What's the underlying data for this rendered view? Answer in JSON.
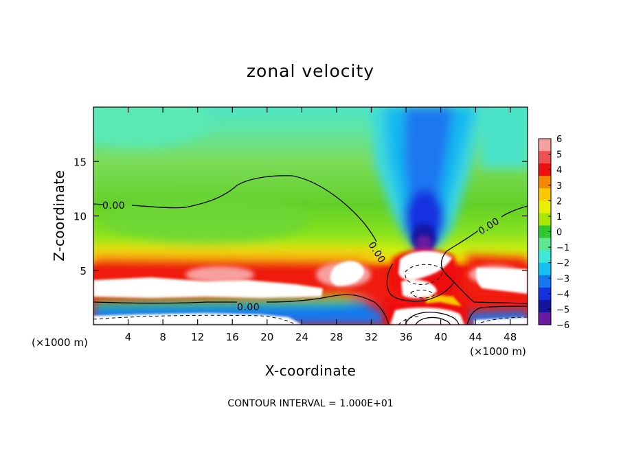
{
  "chart_data": {
    "type": "heatmap",
    "title": "zonal velocity",
    "xlabel": "X-coordinate",
    "ylabel": "Z-coordinate",
    "x_units": "(×1000 m)",
    "xlim": [
      0,
      50
    ],
    "ylim": [
      0,
      20
    ],
    "x_ticks": [
      4,
      8,
      12,
      16,
      20,
      24,
      28,
      32,
      36,
      40,
      44,
      48
    ],
    "y_ticks": [
      5,
      10,
      15
    ],
    "colorbar": {
      "labels": [
        "6",
        "5",
        "4",
        "3",
        "2",
        "1",
        "0",
        "−1",
        "−2",
        "−3",
        "−4",
        "−5",
        "−6"
      ],
      "colors": [
        "#f7a0a0",
        "#f05050",
        "#ee1010",
        "#f58a00",
        "#f8c800",
        "#e8f000",
        "#a8e800",
        "#30c830",
        "#5ee690",
        "#3ee8d8",
        "#14c0f4",
        "#1478f0",
        "#1430e0",
        "#1414a0",
        "#6a1aa0"
      ]
    },
    "contour_labels": [
      "0.00",
      "0.00",
      "0.00",
      "0.00"
    ],
    "footer": "CONTOUR INTERVAL = 1.000E+01"
  }
}
